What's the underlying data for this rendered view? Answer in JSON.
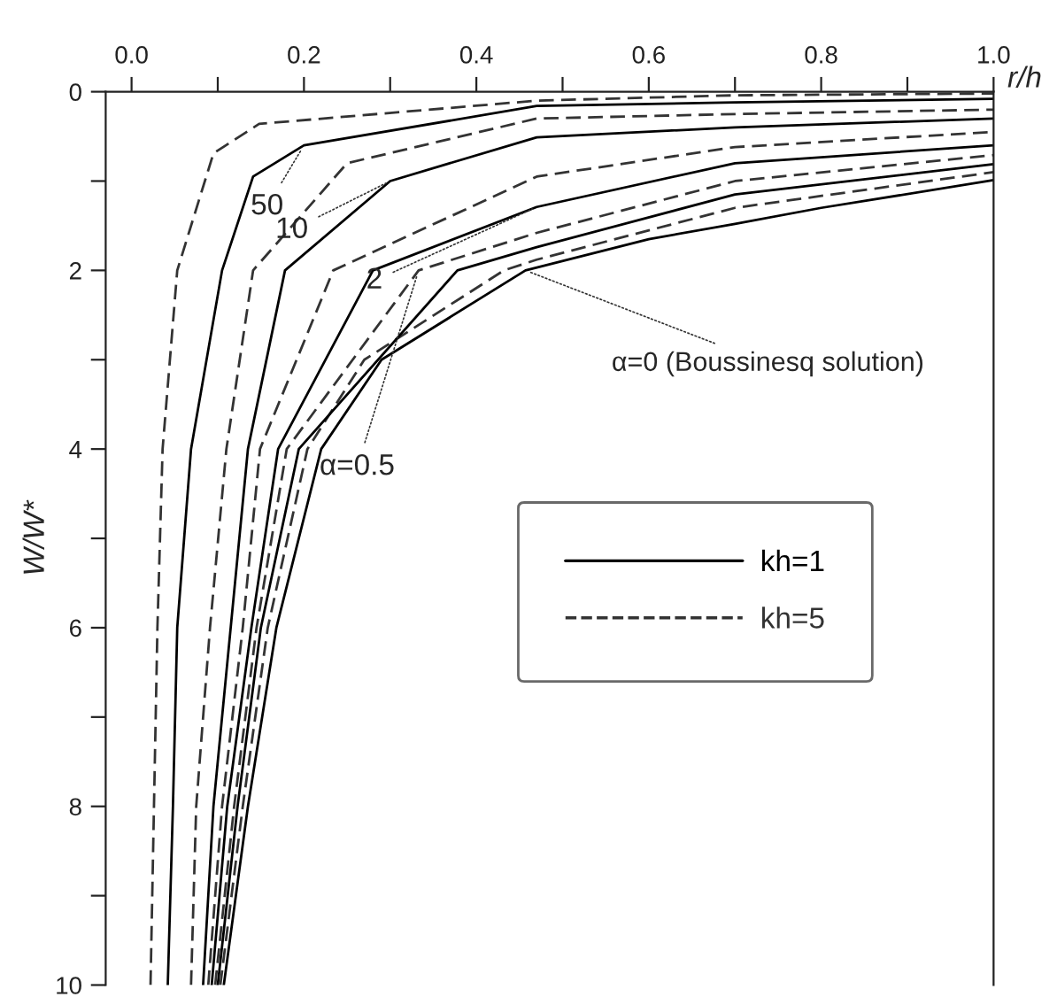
{
  "chart_data": {
    "type": "line",
    "xlabel": "r/h",
    "ylabel": "W/W*",
    "xlim": [
      -0.03,
      1.0
    ],
    "ylim": [
      10,
      0
    ],
    "xticks": [
      {
        "value": 0,
        "label": "0.0"
      },
      {
        "value": 0.1,
        "label": null
      },
      {
        "value": 0.2,
        "label": "0.2"
      },
      {
        "value": 0.3,
        "label": null
      },
      {
        "value": 0.4,
        "label": "0.4"
      },
      {
        "value": 0.5,
        "label": null
      },
      {
        "value": 0.6,
        "label": "0.6"
      },
      {
        "value": 0.7,
        "label": null
      },
      {
        "value": 0.8,
        "label": "0.8"
      },
      {
        "value": 0.9,
        "label": null
      },
      {
        "value": 1,
        "label": "1.0"
      }
    ],
    "yticks": [
      0,
      {
        "value": 1,
        "label": null
      },
      2,
      {
        "value": 3,
        "label": null
      },
      4,
      {
        "value": 5,
        "label": null
      },
      6,
      {
        "value": 7,
        "label": null
      },
      8,
      {
        "value": 9,
        "label": null
      },
      10
    ],
    "grid": false,
    "legend": "right",
    "marker": "none",
    "series": [
      {
        "name": "kh=1",
        "color": "#000000",
        "line_style": "solid",
        "x": [
          0.107,
          0.135,
          0.168,
          0.22,
          0.29,
          0.457,
          0.6,
          0.7,
          0.8,
          1.0
        ],
        "values": [
          10,
          8,
          6,
          4,
          3,
          2,
          1.65,
          1.48,
          1.3,
          0.99
        ]
      },
      {
        "name": "kh=5",
        "color": "#333333",
        "line_style": "dashed",
        "x": [
          0.103,
          0.129,
          0.158,
          0.204,
          0.27,
          0.432,
          0.47,
          0.7,
          1.0
        ],
        "values": [
          10,
          8,
          6,
          4,
          3,
          2,
          1.88,
          1.3,
          0.9
        ]
      },
      {
        "color": "#000000",
        "line_style": "solid",
        "x": [
          0.1,
          0.123,
          0.15,
          0.194,
          0.378,
          0.47,
          0.7,
          1.0
        ],
        "values": [
          10,
          8,
          6,
          4,
          2,
          1.74,
          1.15,
          0.81
        ]
      },
      {
        "color": "#333333",
        "line_style": "dashed",
        "x": [
          0.097,
          0.119,
          0.145,
          0.18,
          0.333,
          0.47,
          0.7,
          1.0
        ],
        "values": [
          10,
          8,
          6,
          4,
          2,
          1.58,
          1.0,
          0.71
        ]
      },
      {
        "color": "#000000",
        "line_style": "solid",
        "x": [
          0.093,
          0.111,
          0.139,
          0.17,
          0.28,
          0.47,
          0.7,
          1.0
        ],
        "values": [
          10,
          8,
          6,
          4,
          2,
          1.29,
          0.8,
          0.6
        ]
      },
      {
        "color": "#333333",
        "line_style": "dashed",
        "x": [
          0.089,
          0.105,
          0.129,
          0.149,
          0.234,
          0.47,
          0.7,
          1.0
        ],
        "values": [
          10,
          8,
          6,
          4,
          2,
          0.95,
          0.62,
          0.45
        ]
      },
      {
        "color": "#000000",
        "line_style": "solid",
        "x": [
          0.083,
          0.095,
          0.115,
          0.135,
          0.178,
          0.3,
          0.47,
          0.7,
          1.0
        ],
        "values": [
          10,
          8,
          6,
          4,
          2,
          1.0,
          0.51,
          0.4,
          0.3
        ]
      },
      {
        "color": "#333333",
        "line_style": "dashed",
        "x": [
          0.069,
          0.075,
          0.091,
          0.11,
          0.141,
          0.25,
          0.47,
          0.7,
          1.0
        ],
        "values": [
          10,
          8,
          6,
          4,
          2,
          0.8,
          0.3,
          0.25,
          0.2
        ]
      },
      {
        "color": "#000000",
        "line_style": "solid",
        "x": [
          0.042,
          0.048,
          0.053,
          0.069,
          0.105,
          0.141,
          0.2,
          0.47,
          0.7,
          1.0
        ],
        "values": [
          10,
          8,
          6,
          4,
          2,
          0.95,
          0.6,
          0.16,
          0.12,
          0.08
        ]
      },
      {
        "color": "#333333",
        "line_style": "dashed",
        "x": [
          0.022,
          0.026,
          0.03,
          0.036,
          0.053,
          0.095,
          0.148,
          0.47,
          0.7,
          1.0
        ],
        "values": [
          10,
          8,
          6,
          4,
          2,
          0.69,
          0.36,
          0.1,
          0.04,
          0.02
        ]
      }
    ],
    "annotations": [
      {
        "text": "50",
        "x": 0.2,
        "y": 0.6
      },
      {
        "text": "10",
        "x": 0.3,
        "y": 1.0
      },
      {
        "text": "2",
        "x": 0.47,
        "y": 1.29
      },
      {
        "text": "α=0.5",
        "x": 0.333,
        "y": 2
      },
      {
        "text": "α=0 (Boussinesq solution)",
        "x": 0.457,
        "y": 2
      }
    ]
  }
}
